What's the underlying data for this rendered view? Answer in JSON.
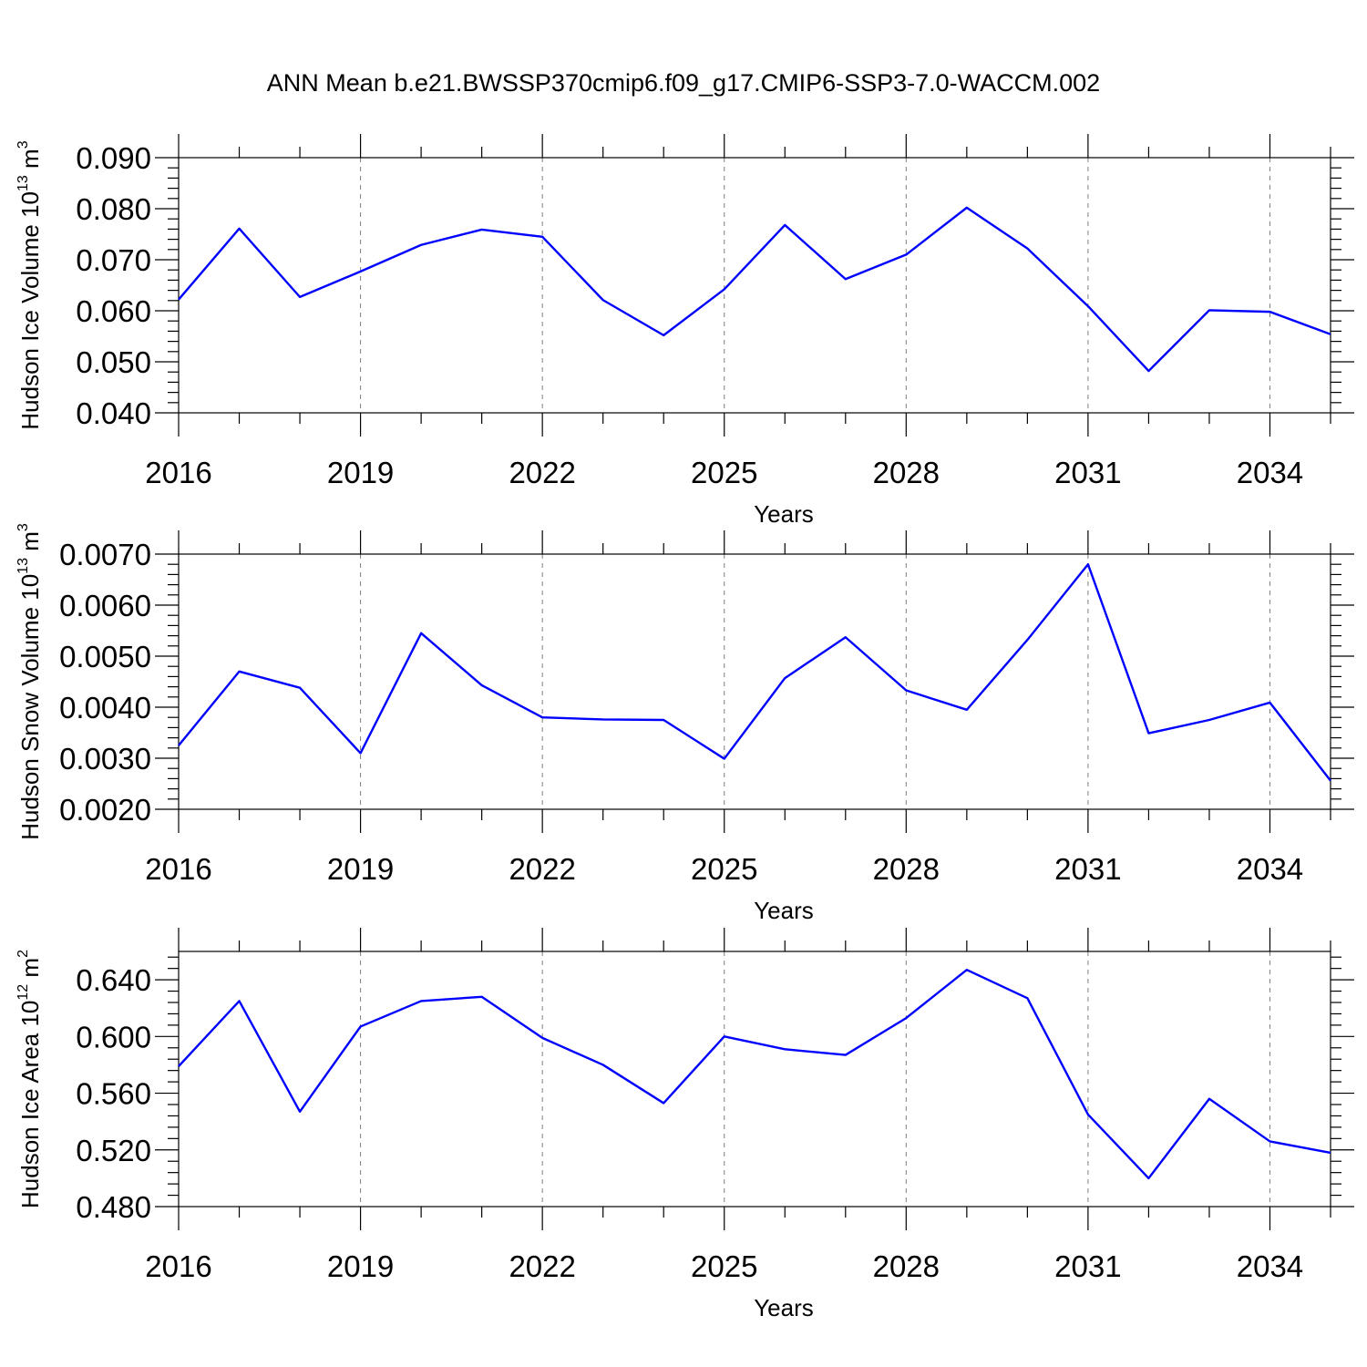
{
  "title": "ANN Mean b.e21.BWSSP370cmip6.f09_g17.CMIP6-SSP3-7.0-WACCM.002",
  "colors": {
    "line": "#0000ff",
    "frame": "#000000",
    "grid": "#7f7f7f"
  },
  "chart_data": [
    {
      "type": "line",
      "xlabel": "Years",
      "ylabel": {
        "base": "Hudson Ice Volume 10",
        "exp": "13",
        "unit": " m",
        "unit_exp": "3"
      },
      "x": [
        2016,
        2017,
        2018,
        2019,
        2020,
        2021,
        2022,
        2023,
        2024,
        2025,
        2026,
        2027,
        2028,
        2029,
        2030,
        2031,
        2032,
        2033,
        2034,
        2035
      ],
      "values": [
        0.0622,
        0.0761,
        0.0627,
        0.0677,
        0.0729,
        0.0759,
        0.0745,
        0.0621,
        0.0552,
        0.0642,
        0.0768,
        0.0662,
        0.071,
        0.0802,
        0.0722,
        0.0609,
        0.0482,
        0.0601,
        0.0598,
        0.0554
      ],
      "xlim": [
        2016,
        2035
      ],
      "ylim": [
        0.04,
        0.09
      ],
      "xticks": [
        "2016",
        "2019",
        "2022",
        "2025",
        "2028",
        "2031",
        "2034"
      ],
      "yticks": [
        "0.040",
        "0.050",
        "0.060",
        "0.070",
        "0.080",
        "0.090"
      ],
      "grid": "vertical dashed at major x ticks"
    },
    {
      "type": "line",
      "xlabel": "Years",
      "ylabel": {
        "base": "Hudson Snow Volume 10",
        "exp": "13",
        "unit": " m",
        "unit_exp": "3"
      },
      "x": [
        2016,
        2017,
        2018,
        2019,
        2020,
        2021,
        2022,
        2023,
        2024,
        2025,
        2026,
        2027,
        2028,
        2029,
        2030,
        2031,
        2032,
        2033,
        2034,
        2035
      ],
      "values": [
        0.00325,
        0.0047,
        0.00438,
        0.0031,
        0.00545,
        0.00443,
        0.0038,
        0.00376,
        0.00375,
        0.00299,
        0.00457,
        0.00537,
        0.00433,
        0.00395,
        0.00532,
        0.0068,
        0.00349,
        0.00375,
        0.00409,
        0.00256
      ],
      "xlim": [
        2016,
        2035
      ],
      "ylim": [
        0.002,
        0.007
      ],
      "xticks": [
        "2016",
        "2019",
        "2022",
        "2025",
        "2028",
        "2031",
        "2034"
      ],
      "yticks": [
        "0.0020",
        "0.0030",
        "0.0040",
        "0.0050",
        "0.0060",
        "0.0070"
      ],
      "grid": "vertical dashed at major x ticks"
    },
    {
      "type": "line",
      "xlabel": "Years",
      "ylabel": {
        "base": "Hudson Ice Area 10",
        "exp": "12",
        "unit": " m",
        "unit_exp": "2"
      },
      "x": [
        2016,
        2017,
        2018,
        2019,
        2020,
        2021,
        2022,
        2023,
        2024,
        2025,
        2026,
        2027,
        2028,
        2029,
        2030,
        2031,
        2032,
        2033,
        2034,
        2035
      ],
      "values": [
        0.579,
        0.625,
        0.547,
        0.607,
        0.625,
        0.628,
        0.599,
        0.58,
        0.553,
        0.6,
        0.591,
        0.587,
        0.613,
        0.647,
        0.627,
        0.545,
        0.5,
        0.556,
        0.526,
        0.518
      ],
      "xlim": [
        2016,
        2035
      ],
      "ylim": [
        0.48,
        0.66
      ],
      "xticks": [
        "2016",
        "2019",
        "2022",
        "2025",
        "2028",
        "2031",
        "2034"
      ],
      "yticks": [
        "0.480",
        "0.520",
        "0.560",
        "0.600",
        "0.640"
      ],
      "grid": "vertical dashed at major x ticks"
    }
  ]
}
